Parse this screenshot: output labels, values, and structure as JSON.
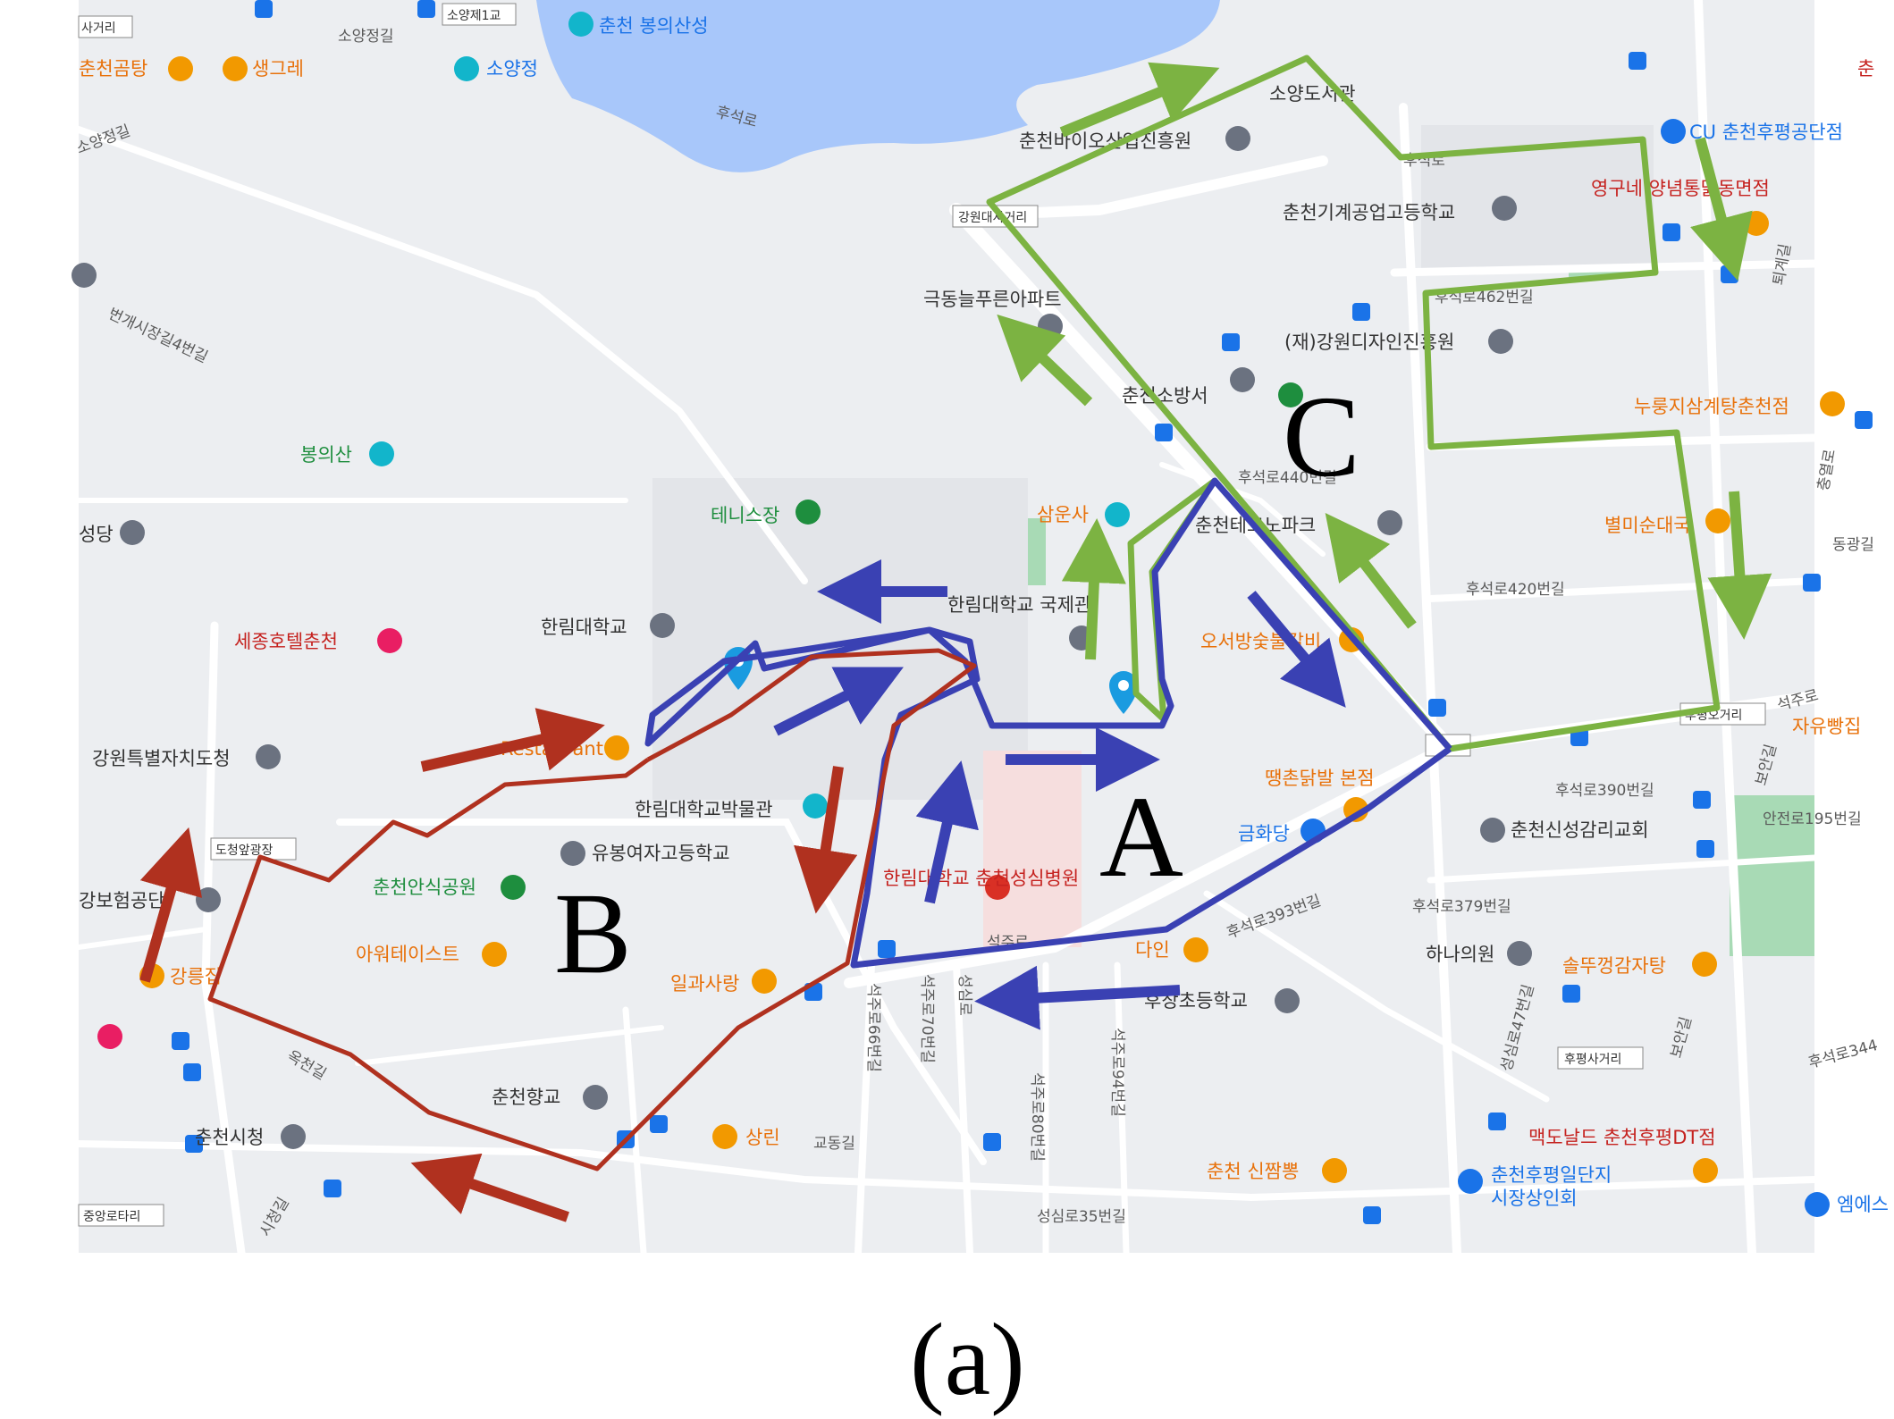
{
  "caption": "(a)",
  "routes": [
    {
      "letter": "A",
      "color": "#3a41b3"
    },
    {
      "letter": "B",
      "color": "#b0311f"
    },
    {
      "letter": "C",
      "color": "#7cb342"
    }
  ],
  "colors": {
    "water": "#a8c7fa",
    "park": "#a8dab5",
    "land": "#eceef1",
    "road": "#ffffff",
    "campus": "#e3e5e9"
  },
  "labels": {
    "l01": "사거리",
    "l02": "소양정길",
    "l03": "소양제1교",
    "l04": "춘천 봉의산성",
    "l05": "춘천곰탕",
    "l06": "생그레",
    "l07": "소양정",
    "l08": "후석로",
    "l09": "소양정길",
    "l10": "소양도서관",
    "l11": "CU 춘천후평공단점",
    "l12": "춘천바이오산업진흥원",
    "l13": "후석로",
    "l14": "영구네 양념통닭동면점",
    "l15": "춘천기계공업고등학교",
    "l16": "강원대사거리",
    "l17": "극동늘푸른아파트",
    "l18": "후석로462번길",
    "l19": "번개시장길4번길",
    "l20": "(재)강원디자인진흥원",
    "l21": "춘천소방서",
    "l22": "누룽지삼계탕춘천점",
    "l23": "봉의산",
    "l24": "후석로440번길",
    "l25": "춘천테크노파크",
    "l26": "삼운사",
    "l27": "테니스장",
    "l28": "별미순대국",
    "l29": "성당",
    "l30": "한림대학교 국제관",
    "l31": "후석로420번길",
    "l32": "동광길",
    "l33": "한림대학교",
    "l34": "오서방숯불갈비",
    "l35": "세종호텔춘천",
    "l36": "Restaurant",
    "l37": "자유빵집",
    "l38": "강원특별자치도청",
    "l39": "땡촌닭발 본점",
    "l40": "후석로390번길",
    "l41": "한림대학교박물관",
    "l42": "도청앞광장",
    "l43": "금화당",
    "l44": "춘천신성감리교회",
    "l45": "안전로195번길",
    "l46": "유봉여자고등학교",
    "l47": "춘천안식공원",
    "l48": "한림대학교 춘천성심병원",
    "l49": "후석로379번길",
    "l50": "강보험공단",
    "l51": "아워테이스트",
    "l52": "다인",
    "l53": "후석로393번길",
    "l54": "하나의원",
    "l55": "강릉집",
    "l56": "일과사랑",
    "l57": "솔뚜껑감자탕",
    "l58": "후장초등학교",
    "l59": "후평사거리",
    "l60": "후석로344",
    "l61": "옥천길",
    "l62": "춘천향교",
    "l63": "춘천시청",
    "l64": "상린",
    "l65": "교동길",
    "l66": "맥도날드 춘천후평DT점",
    "l67": "춘천 신짬뽕",
    "l68": "춘천후평일단지",
    "l69": "시장상인회",
    "l70": "중앙로타리",
    "l71": "시청길",
    "l72": "성심로35번길",
    "l73": "엠에스",
    "l74": "석주로66번길",
    "l75": "석주로70번길",
    "l76": "성심로",
    "l77": "석주로80번길",
    "l78": "석주로94번길",
    "l79": "석주로",
    "l80": "춘",
    "l81": "석주로",
    "l82": "후평오거리",
    "l83": "보안길",
    "l84": "퇴계길",
    "l85": "충열로",
    "l86": "성심로47번길",
    "l87": "보안길"
  }
}
